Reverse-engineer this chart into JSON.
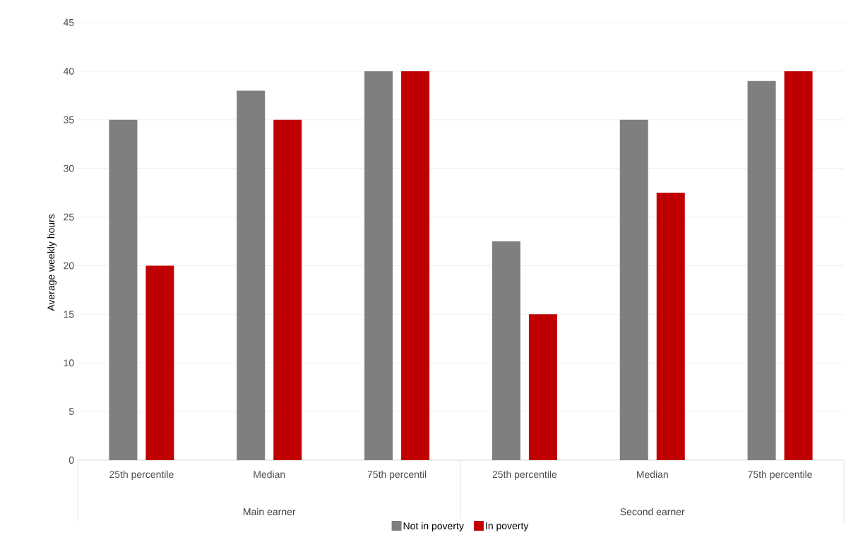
{
  "chart_data": {
    "type": "bar",
    "ylabel": "Average weekly hours",
    "categories": [
      "25th percentile",
      "Median",
      "75th percentil",
      "25th percentile",
      "Median",
      "75th percentile"
    ],
    "annotations": [
      "Main earner",
      "Second earner"
    ],
    "series": [
      {
        "name": "Not in poverty",
        "color": "#7f7f7f",
        "values": [
          35,
          38,
          40,
          22.5,
          35,
          39
        ]
      },
      {
        "name": "In poverty",
        "color": "#c00000",
        "values": [
          20,
          35,
          40,
          15,
          27.5,
          40
        ]
      }
    ],
    "ylim": [
      0,
      45
    ],
    "yticks": [
      0,
      5,
      10,
      15,
      20,
      25,
      30,
      35,
      40,
      45
    ],
    "grid": "y",
    "legend": "bottom"
  }
}
